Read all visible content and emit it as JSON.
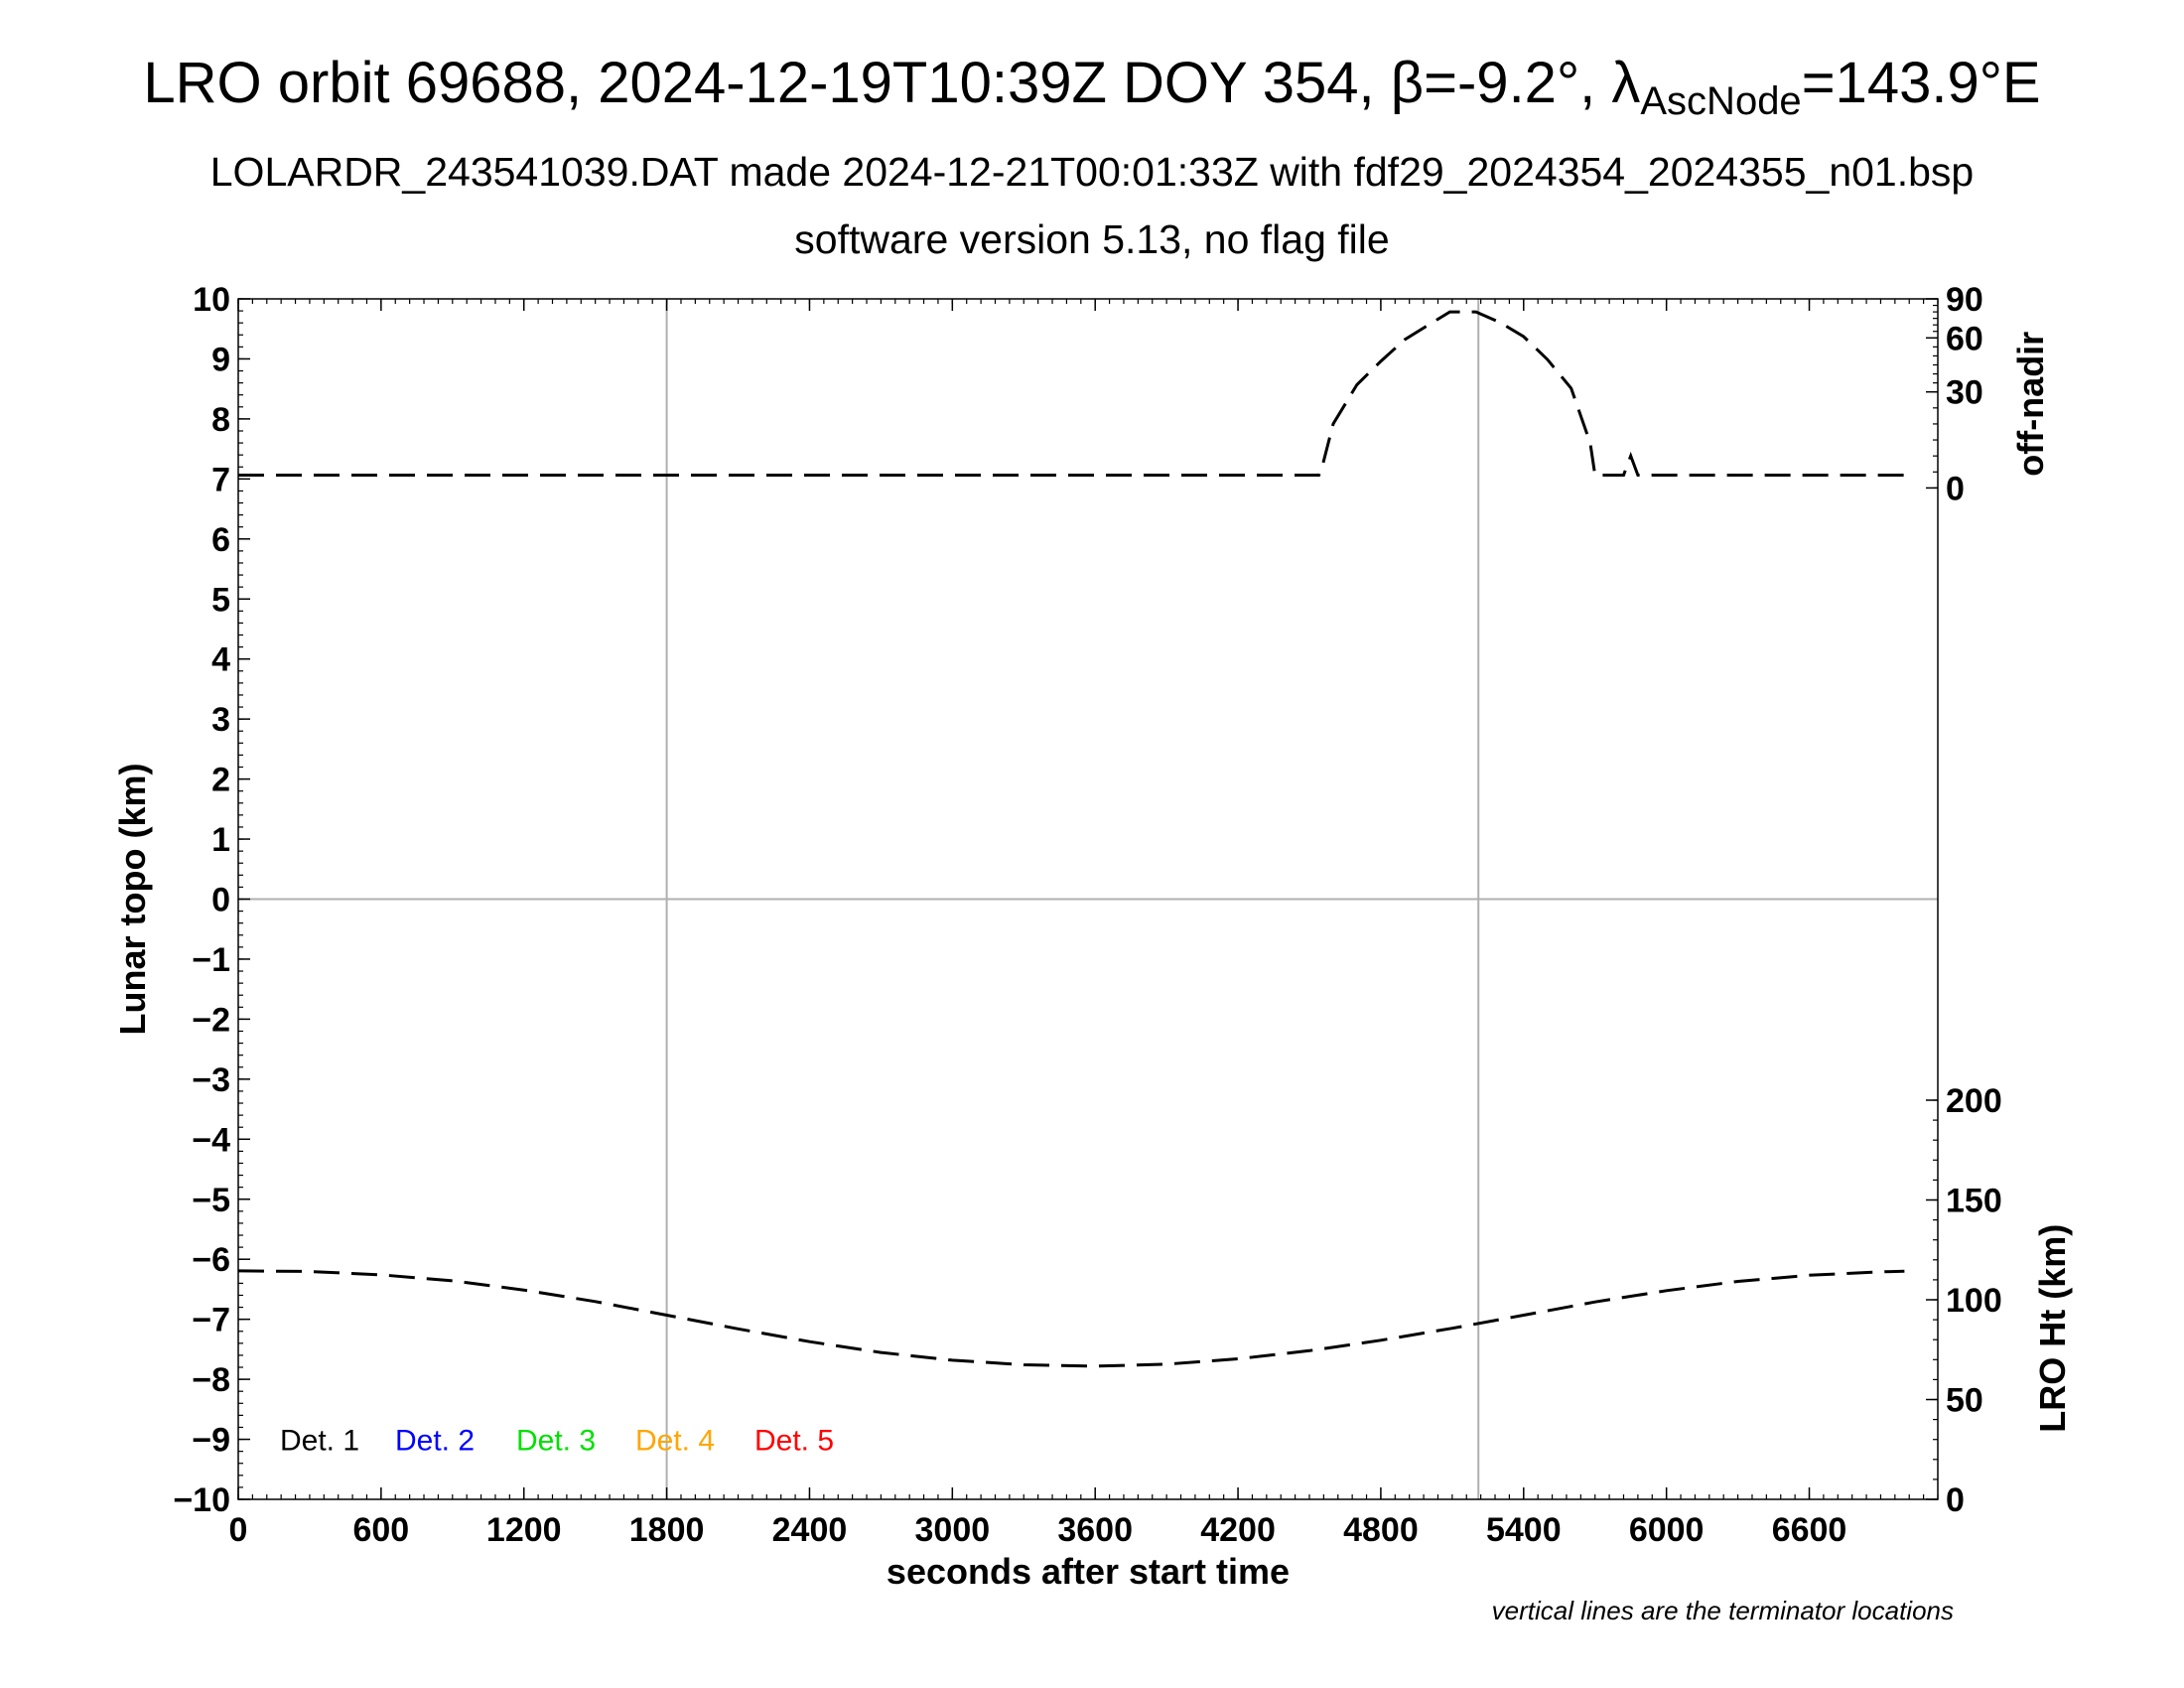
{
  "chart_data": {
    "type": "line",
    "title": {
      "prefix": "LRO orbit 69688, 2024-12-19T10:39Z DOY 354, β=-9.2°, λ",
      "subscript": "AscNode",
      "suffix": "=143.9°E"
    },
    "subtitle_1": "LOLARDR_243541039.DAT made 2024-12-21T00:01:33Z with fdf29_2024354_2024355_n01.bsp",
    "subtitle_2": "software version 5.13, no flag file",
    "xlabel": "seconds after start time",
    "ylabel_left": "Lunar topo (km)",
    "ylabel_right_top": "off-nadir",
    "ylabel_right_bottom": "LRO Ht (km)",
    "note": "vertical lines are the terminator locations",
    "xlim": [
      0,
      7140
    ],
    "ylim_left": [
      -10,
      10
    ],
    "x_ticks": [
      0,
      600,
      1200,
      1800,
      2400,
      3000,
      3600,
      4200,
      4800,
      5400,
      6000,
      6600
    ],
    "x_tick_labels": [
      "0",
      "600",
      "1200",
      "1800",
      "2400",
      "3000",
      "3600",
      "4200",
      "4800",
      "5400",
      "6000",
      "6600"
    ],
    "y_ticks_left": [
      10,
      9,
      8,
      7,
      6,
      5,
      4,
      3,
      2,
      1,
      0,
      -1,
      -2,
      -3,
      -4,
      -5,
      -6,
      -7,
      -8,
      -9,
      -10
    ],
    "y_tick_labels_left": [
      "10",
      "9",
      "8",
      "7",
      "6",
      "5",
      "4",
      "3",
      "2",
      "1",
      "0",
      "−1",
      "−2",
      "−3",
      "−4",
      "−5",
      "−6",
      "−7",
      "−8",
      "−9",
      "−10"
    ],
    "right_top_axis": {
      "ticks": [
        0,
        30,
        60,
        90
      ],
      "tick_labels": [
        "0",
        "30",
        "60",
        "90"
      ]
    },
    "right_bottom_axis": {
      "ticks": [
        0,
        50,
        100,
        150,
        200
      ],
      "tick_labels": [
        "0",
        "50",
        "100",
        "150",
        "200"
      ]
    },
    "terminators_x": [
      1800,
      5210
    ],
    "grid_zero_line": true,
    "legend": [
      {
        "label": "Det. 1",
        "color": "#000000"
      },
      {
        "label": "Det. 2",
        "color": "#0000ff"
      },
      {
        "label": "Det. 3",
        "color": "#00e000"
      },
      {
        "label": "Det. 4",
        "color": "#ffa500"
      },
      {
        "label": "Det. 5",
        "color": "#ff0000"
      }
    ],
    "series": [
      {
        "axis": "right_top",
        "style": "dashed",
        "x": [
          0,
          1000,
          2000,
          3000,
          4000,
          4540,
          4555,
          4600,
          4700,
          4800,
          4900,
          5000,
          5090,
          5200,
          5300,
          5400,
          5500,
          5600,
          5680,
          5700,
          5730,
          5790,
          5820,
          5850,
          5880,
          6000,
          6500,
          7000
        ],
        "y": [
          4,
          4,
          4,
          4,
          4,
          4,
          7,
          20,
          34,
          47,
          59,
          70,
          80,
          80,
          72,
          61,
          48,
          32,
          14,
          4,
          4,
          4,
          4,
          10,
          4,
          4,
          4,
          4
        ]
      },
      {
        "axis": "right_bottom",
        "style": "dashed",
        "x": [
          0,
          300,
          600,
          900,
          1200,
          1500,
          1800,
          2100,
          2400,
          2700,
          3000,
          3300,
          3600,
          3900,
          4200,
          4500,
          4800,
          5100,
          5400,
          5700,
          6000,
          6300,
          6600,
          6900,
          7000
        ],
        "y": [
          114.5,
          114.2,
          112.5,
          109.5,
          104.9,
          99.1,
          92.3,
          85.4,
          79.0,
          73.6,
          69.7,
          67.4,
          66.7,
          67.7,
          70.4,
          74.5,
          79.7,
          85.7,
          92.3,
          98.9,
          104.6,
          109.2,
          112.3,
          114.0,
          114.3
        ]
      }
    ]
  }
}
